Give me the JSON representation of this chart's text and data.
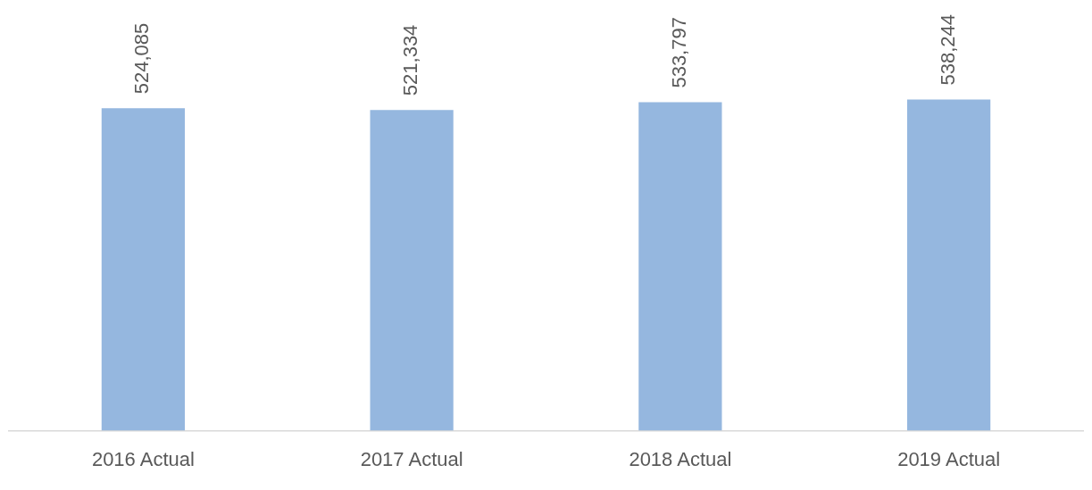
{
  "chart_data": {
    "type": "bar",
    "categories": [
      "2016 Actual",
      "2017 Actual",
      "2018 Actual",
      "2019 Actual"
    ],
    "values": [
      524085,
      521334,
      533797,
      538244
    ],
    "color": "#95b7df",
    "value_labels": [
      "524,085",
      "521,334",
      "533,797",
      "538,244"
    ],
    "legend": false,
    "grid": false
  }
}
